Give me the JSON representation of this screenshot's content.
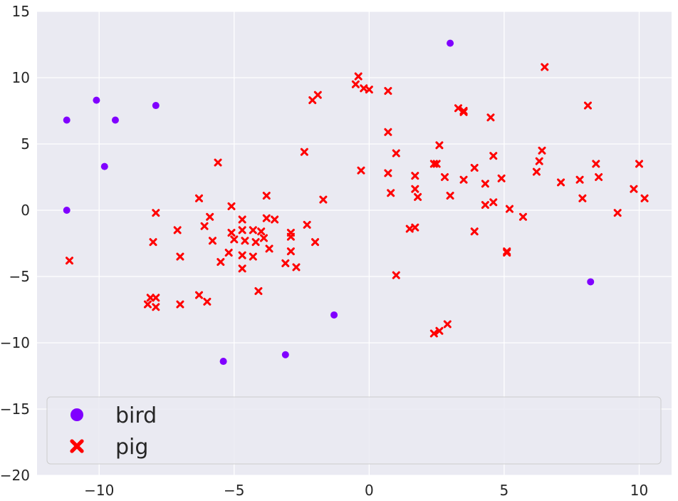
{
  "chart_data": {
    "type": "scatter",
    "title": "",
    "xlabel": "",
    "ylabel": "",
    "xlim": [
      -12.3,
      11.2
    ],
    "ylim": [
      -20,
      15
    ],
    "xticks": [
      -10,
      -5,
      0,
      5,
      10
    ],
    "yticks": [
      -20,
      -15,
      -10,
      -5,
      0,
      5,
      10,
      15
    ],
    "xtick_labels": [
      "−10",
      "−5",
      "0",
      "5",
      "10"
    ],
    "ytick_labels": [
      "−20",
      "−15",
      "−10",
      "−5",
      "0",
      "5",
      "10",
      "15"
    ],
    "grid": true,
    "legend": {
      "placement": "lower-left"
    },
    "series": [
      {
        "name": "bird",
        "marker": "circle",
        "color": "#8000ff",
        "points": [
          [
            -11.2,
            6.8
          ],
          [
            -10.1,
            8.3
          ],
          [
            -9.4,
            6.8
          ],
          [
            -7.9,
            7.9
          ],
          [
            -9.8,
            3.3
          ],
          [
            -11.2,
            0.0
          ],
          [
            3.0,
            12.6
          ],
          [
            8.2,
            -5.4
          ],
          [
            -1.3,
            -7.9
          ],
          [
            -3.1,
            -10.9
          ],
          [
            -5.4,
            -11.4
          ]
        ]
      },
      {
        "name": "pig",
        "marker": "x",
        "color": "#ff0000",
        "points": [
          [
            -11.1,
            -3.8
          ],
          [
            -5.6,
            3.6
          ],
          [
            -6.3,
            0.9
          ],
          [
            -5.9,
            -0.5
          ],
          [
            -6.1,
            -1.2
          ],
          [
            -5.8,
            -2.3
          ],
          [
            -5.5,
            -3.9
          ],
          [
            -7.9,
            -0.2
          ],
          [
            -8.0,
            -2.4
          ],
          [
            -7.1,
            -1.5
          ],
          [
            -7.0,
            -3.5
          ],
          [
            -6.3,
            -6.4
          ],
          [
            -6.0,
            -6.9
          ],
          [
            -7.0,
            -7.1
          ],
          [
            -8.1,
            -6.6
          ],
          [
            -8.2,
            -7.1
          ],
          [
            -7.9,
            -6.6
          ],
          [
            -7.9,
            -7.3
          ],
          [
            -5.1,
            0.3
          ],
          [
            -5.1,
            -1.7
          ],
          [
            -5.0,
            -2.2
          ],
          [
            -4.7,
            -0.7
          ],
          [
            -4.7,
            -1.5
          ],
          [
            -4.6,
            -2.3
          ],
          [
            -4.3,
            -1.5
          ],
          [
            -4.2,
            -2.4
          ],
          [
            -4.7,
            -3.4
          ],
          [
            -4.7,
            -4.4
          ],
          [
            -4.3,
            -3.5
          ],
          [
            -5.2,
            -3.2
          ],
          [
            -3.8,
            1.1
          ],
          [
            -3.8,
            -0.6
          ],
          [
            -3.5,
            -0.7
          ],
          [
            -4.0,
            -1.6
          ],
          [
            -3.9,
            -2.1
          ],
          [
            -3.7,
            -2.9
          ],
          [
            -2.9,
            -1.7
          ],
          [
            -2.9,
            -2.0
          ],
          [
            -2.9,
            -3.1
          ],
          [
            -3.1,
            -4.0
          ],
          [
            -2.7,
            -4.3
          ],
          [
            -4.1,
            -6.1
          ],
          [
            -2.4,
            4.4
          ],
          [
            -2.3,
            -1.1
          ],
          [
            -2.0,
            -2.4
          ],
          [
            -1.7,
            0.8
          ],
          [
            -2.1,
            8.3
          ],
          [
            -1.9,
            8.7
          ],
          [
            -0.5,
            9.5
          ],
          [
            -0.4,
            10.1
          ],
          [
            -0.2,
            9.2
          ],
          [
            0.0,
            9.1
          ],
          [
            0.7,
            9.0
          ],
          [
            -0.3,
            3.0
          ],
          [
            0.7,
            5.9
          ],
          [
            1.0,
            4.3
          ],
          [
            0.7,
            2.8
          ],
          [
            0.8,
            1.3
          ],
          [
            1.0,
            -4.9
          ],
          [
            1.5,
            -1.4
          ],
          [
            1.7,
            -1.3
          ],
          [
            1.7,
            1.6
          ],
          [
            1.7,
            2.6
          ],
          [
            1.8,
            1.0
          ],
          [
            2.4,
            3.5
          ],
          [
            2.5,
            3.5
          ],
          [
            2.6,
            4.9
          ],
          [
            2.8,
            2.5
          ],
          [
            3.0,
            1.1
          ],
          [
            2.4,
            -9.3
          ],
          [
            2.6,
            -9.1
          ],
          [
            2.9,
            -8.6
          ],
          [
            3.3,
            7.7
          ],
          [
            3.5,
            7.5
          ],
          [
            3.5,
            7.4
          ],
          [
            3.5,
            2.3
          ],
          [
            3.9,
            3.2
          ],
          [
            3.9,
            -1.6
          ],
          [
            4.3,
            2.0
          ],
          [
            4.3,
            0.4
          ],
          [
            4.5,
            7.0
          ],
          [
            4.6,
            4.1
          ],
          [
            4.6,
            0.6
          ],
          [
            4.9,
            2.4
          ],
          [
            5.1,
            -3.1
          ],
          [
            5.1,
            -3.2
          ],
          [
            5.2,
            0.1
          ],
          [
            5.7,
            -0.5
          ],
          [
            6.2,
            2.9
          ],
          [
            6.3,
            3.7
          ],
          [
            6.4,
            4.5
          ],
          [
            6.5,
            10.8
          ],
          [
            7.1,
            2.1
          ],
          [
            7.8,
            2.3
          ],
          [
            7.9,
            0.9
          ],
          [
            8.1,
            7.9
          ],
          [
            8.4,
            3.5
          ],
          [
            8.5,
            2.5
          ],
          [
            9.2,
            -0.2
          ],
          [
            9.8,
            1.6
          ],
          [
            10.0,
            3.5
          ],
          [
            10.2,
            0.9
          ]
        ]
      }
    ]
  }
}
